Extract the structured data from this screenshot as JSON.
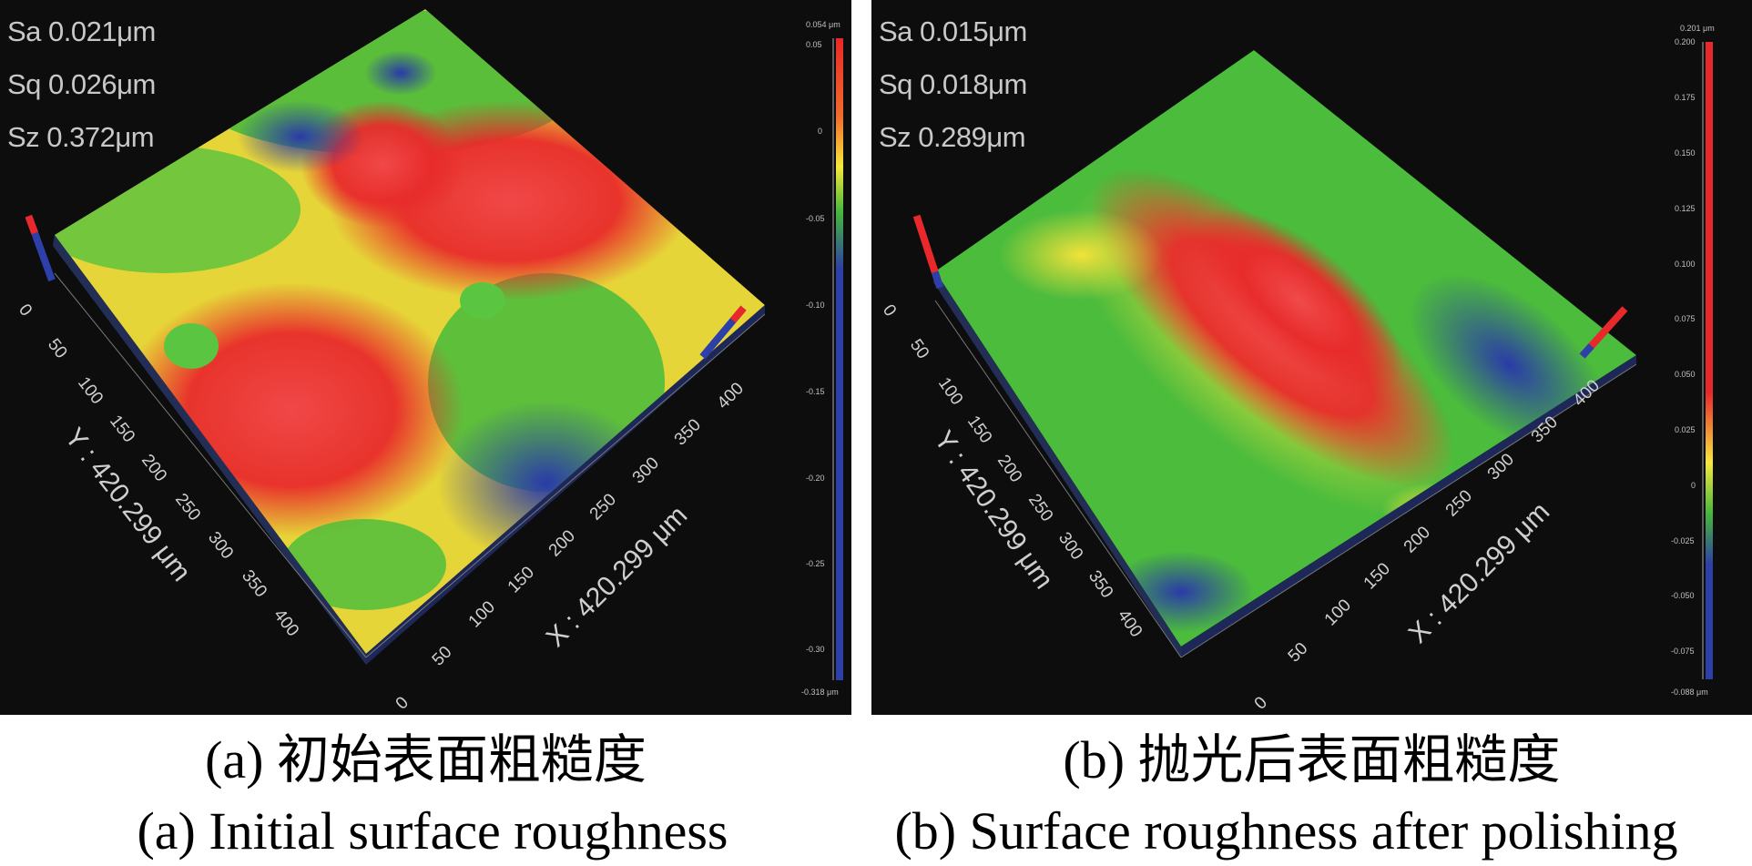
{
  "panel_a": {
    "stats": [
      "Sa 0.021μm",
      "Sq 0.026μm",
      "Sz 0.372μm"
    ],
    "y_axis_label": "Y : 420.299 μm",
    "x_axis_label": "X : 420.299 μm",
    "y_ticks": [
      "0",
      "50",
      "100",
      "150",
      "200",
      "250",
      "300",
      "350",
      "400"
    ],
    "x_ticks": [
      "0",
      "50",
      "100",
      "150",
      "200",
      "250",
      "300",
      "350",
      "400"
    ],
    "scale_max_label": "0.054 μm",
    "scale_ticks": [
      "0.05",
      "0",
      "-0.05",
      "-0.10",
      "-0.15",
      "-0.20",
      "-0.25",
      "-0.30"
    ],
    "scale_min_label": "-0.318 μm",
    "caption_cn": "(a)  初始表面粗糙度",
    "caption_en": "(a)  Initial surface roughness"
  },
  "panel_b": {
    "stats": [
      "Sa 0.015μm",
      "Sq 0.018μm",
      "Sz 0.289μm"
    ],
    "y_axis_label": "Y : 420.299 μm",
    "x_axis_label": "X : 420.299 μm",
    "y_ticks": [
      "0",
      "50",
      "100",
      "150",
      "200",
      "250",
      "300",
      "350",
      "400"
    ],
    "x_ticks": [
      "0",
      "50",
      "100",
      "150",
      "200",
      "250",
      "300",
      "350",
      "400"
    ],
    "scale_max_label": "0.201 μm",
    "scale_ticks": [
      "0.200",
      "0.175",
      "0.150",
      "0.125",
      "0.100",
      "0.075",
      "0.050",
      "0.025",
      "0",
      "-0.025",
      "-0.050",
      "-0.075"
    ],
    "scale_min_label": "-0.088 μm",
    "caption_cn": "(b)  抛光后表面粗糙度",
    "caption_en": "(b)  Surface roughness after polishing"
  },
  "colors": {
    "background": "#0d0d0d",
    "high": "#e8282a",
    "mid_high": "#f7e93a",
    "mid": "#46b83a",
    "low": "#2d3fa8"
  }
}
